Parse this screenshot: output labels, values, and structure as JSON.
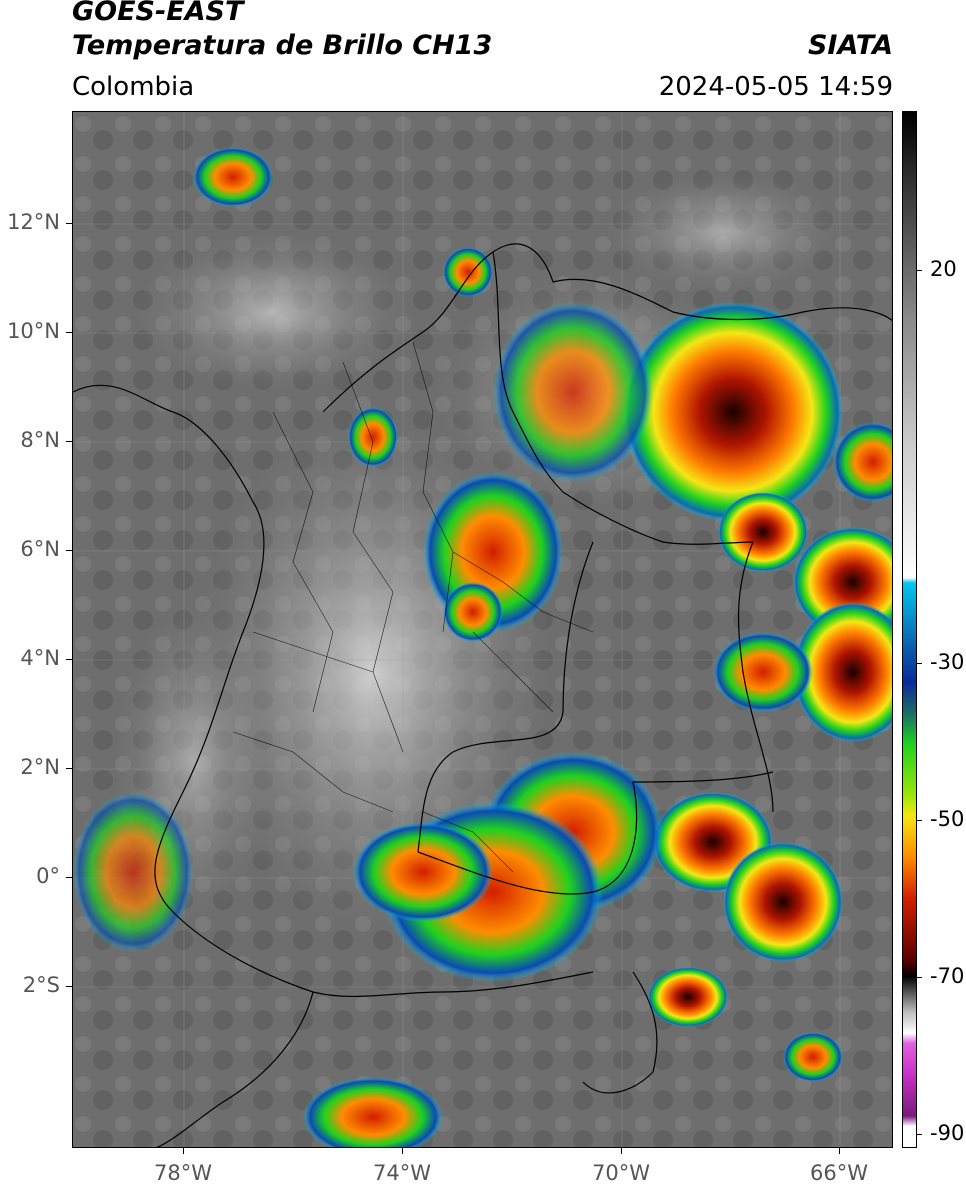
{
  "header": {
    "title_line1": "GOES-EAST",
    "title_line2": "Temperatura de Brillo CH13",
    "subtitle": "Colombia",
    "organization": "SIATA",
    "datetime": "2024-05-05 14:59"
  },
  "map": {
    "latitude_labels": [
      "12°N",
      "10°N",
      "8°N",
      "6°N",
      "4°N",
      "2°N",
      "0°",
      "2°S"
    ],
    "longitude_labels": [
      "78°W",
      "74°W",
      "70°W",
      "66°W"
    ]
  },
  "colorbar": {
    "tick_labels": [
      "20",
      "-30",
      "-50",
      "-70",
      "-90"
    ],
    "colors": {
      "black": "#000000",
      "gray_dark": "#5a5a5a",
      "gray_light": "#f0f0f0",
      "cyan": "#00c8f0",
      "blue": "#0a2a9a",
      "green": "#1ed21e",
      "yellow": "#f5e614",
      "orange": "#ff8c00",
      "red": "#d21e00",
      "dark_red": "#5a0000",
      "magenta": "#c832c8",
      "purple": "#7a1a7a"
    }
  }
}
